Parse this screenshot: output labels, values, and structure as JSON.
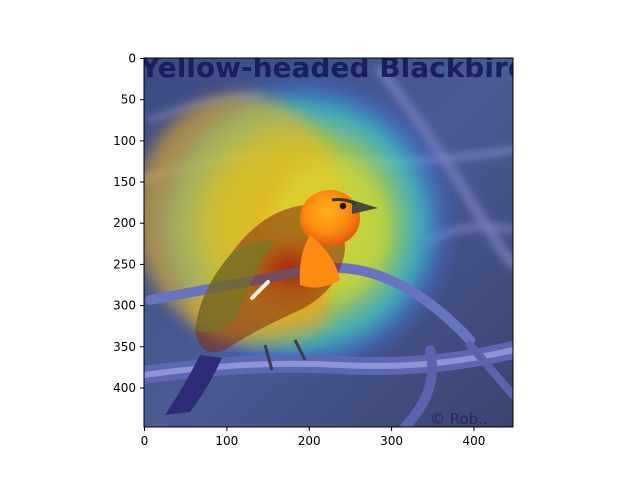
{
  "figure": {
    "image_subject": "bird-heatmap-overlay",
    "embedded_title_text": "Yellow-headed Blackbird",
    "watermark_text": "© Rob..",
    "x_ticks": [
      "0",
      "100",
      "200",
      "300",
      "400"
    ],
    "y_ticks": [
      "0",
      "50",
      "100",
      "150",
      "200",
      "250",
      "300",
      "350",
      "400"
    ],
    "x_range": [
      0,
      448
    ],
    "y_range": [
      0,
      448
    ],
    "colormap": "jet"
  }
}
